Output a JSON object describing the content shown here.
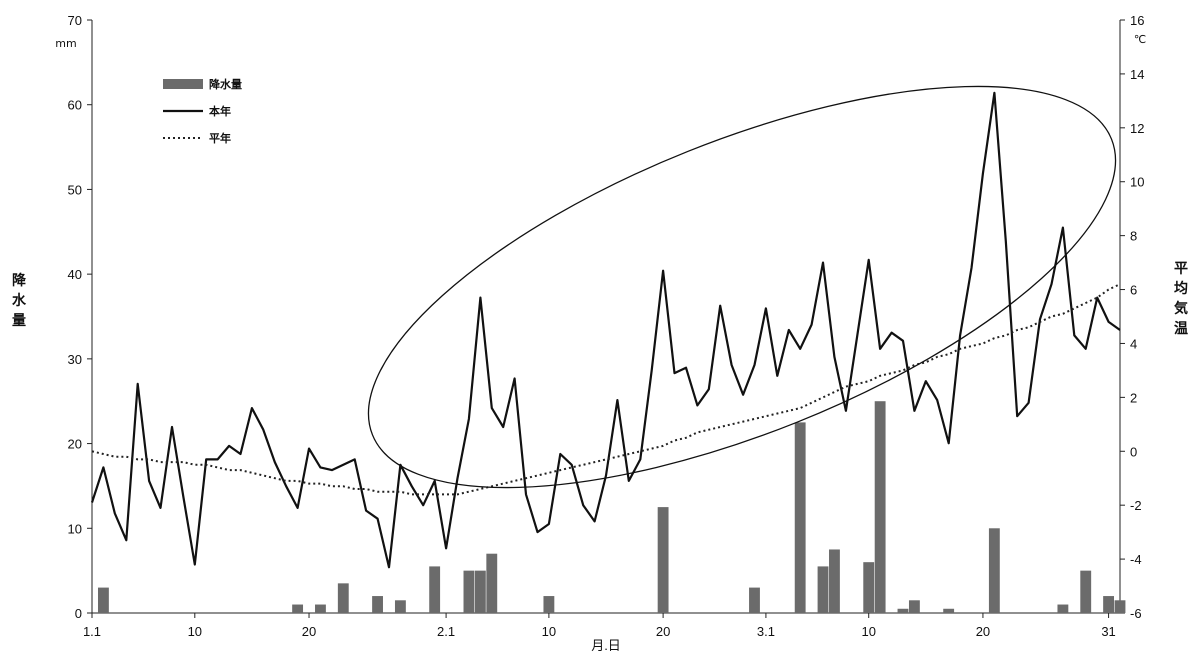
{
  "chart_data": {
    "type": "bar+line",
    "xlabel": "月.日",
    "y_left": {
      "label": "降水量",
      "unit": "mm",
      "range": [
        0,
        70
      ],
      "ticks": [
        0,
        10,
        20,
        30,
        40,
        50,
        60,
        70
      ]
    },
    "y_right": {
      "label": "平均気温",
      "unit": "℃",
      "range": [
        -6,
        16
      ],
      "ticks": [
        -6,
        -4,
        -2,
        0,
        2,
        4,
        6,
        8,
        10,
        12,
        14,
        16
      ]
    },
    "x_range": [
      1,
      91
    ],
    "x_ticks": [
      {
        "day": 1,
        "label": "1.1"
      },
      {
        "day": 10,
        "label": "10"
      },
      {
        "day": 20,
        "label": "20"
      },
      {
        "day": 32,
        "label": "2.1"
      },
      {
        "day": 41,
        "label": "10"
      },
      {
        "day": 51,
        "label": "20"
      },
      {
        "day": 60,
        "label": "3.1"
      },
      {
        "day": 69,
        "label": "10"
      },
      {
        "day": 79,
        "label": "20"
      },
      {
        "day": 90,
        "label": "31"
      }
    ],
    "legend": {
      "position": "top-left",
      "items": [
        {
          "key": "precip",
          "label": "降水量",
          "style": "bar"
        },
        {
          "key": "temp_this",
          "label": "本年",
          "style": "solid-line"
        },
        {
          "key": "temp_normal",
          "label": "平年",
          "style": "dotted-line"
        }
      ]
    },
    "colors": {
      "bar": "#6b6b6b",
      "line": "#111111",
      "normal": "#222222"
    },
    "annotation": {
      "type": "ellipse",
      "note": "highlighted period of warming trend"
    },
    "series": [
      {
        "name": "降水量",
        "axis": "left",
        "type": "bar",
        "points": [
          [
            2,
            3
          ],
          [
            19,
            1
          ],
          [
            21,
            1
          ],
          [
            23,
            3.5
          ],
          [
            26,
            2
          ],
          [
            28,
            1.5
          ],
          [
            31,
            5.5
          ],
          [
            34,
            5
          ],
          [
            35,
            5
          ],
          [
            36,
            7
          ],
          [
            41,
            2
          ],
          [
            51,
            12.5
          ],
          [
            59,
            3
          ],
          [
            63,
            22.5
          ],
          [
            65,
            5.5
          ],
          [
            66,
            7.5
          ],
          [
            69,
            6
          ],
          [
            70,
            25
          ],
          [
            72,
            0.5
          ],
          [
            73,
            1.5
          ],
          [
            76,
            0.5
          ],
          [
            80,
            10
          ],
          [
            86,
            1
          ],
          [
            88,
            5
          ],
          [
            90,
            2
          ],
          [
            91,
            1.5
          ]
        ]
      },
      {
        "name": "本年",
        "axis": "right",
        "type": "line",
        "y": [
          -1.9,
          -0.6,
          -2.3,
          -3.3,
          2.5,
          -1.1,
          -2.1,
          0.9,
          -1.7,
          -4.2,
          -0.3,
          -0.3,
          0.2,
          -0.1,
          1.6,
          0.8,
          -0.4,
          -1.3,
          -2.1,
          0.1,
          -0.6,
          -0.7,
          -0.5,
          -0.3,
          -2.2,
          -2.5,
          -4.3,
          -0.5,
          -1.3,
          -2.0,
          -1.1,
          -3.6,
          -1.0,
          1.2,
          5.7,
          1.6,
          0.9,
          2.7,
          -1.6,
          -3.0,
          -2.7,
          -0.1,
          -0.5,
          -2.0,
          -2.6,
          -0.9,
          1.9,
          -1.1,
          -0.3,
          3.0,
          6.7,
          2.9,
          3.1,
          1.7,
          2.3,
          5.4,
          3.2,
          2.1,
          3.2,
          5.3,
          2.8,
          4.5,
          3.8,
          4.7,
          7.0,
          3.5,
          1.5,
          4.3,
          7.1,
          3.8,
          4.4,
          4.1,
          1.5,
          2.6,
          1.9,
          0.3,
          4.3,
          6.8,
          10.3,
          13.3,
          7.8,
          1.3,
          1.8,
          4.9,
          6.2,
          8.3,
          4.3,
          3.8,
          5.7,
          4.8,
          4.5
        ]
      },
      {
        "name": "平年",
        "axis": "right",
        "type": "line",
        "y": [
          0.0,
          -0.1,
          -0.2,
          -0.2,
          -0.3,
          -0.3,
          -0.4,
          -0.4,
          -0.4,
          -0.5,
          -0.5,
          -0.6,
          -0.7,
          -0.7,
          -0.8,
          -0.9,
          -1.0,
          -1.1,
          -1.1,
          -1.2,
          -1.2,
          -1.3,
          -1.3,
          -1.4,
          -1.4,
          -1.5,
          -1.5,
          -1.5,
          -1.6,
          -1.6,
          -1.6,
          -1.6,
          -1.6,
          -1.5,
          -1.4,
          -1.3,
          -1.2,
          -1.1,
          -1.0,
          -0.9,
          -0.8,
          -0.7,
          -0.6,
          -0.5,
          -0.4,
          -0.3,
          -0.2,
          -0.1,
          0.0,
          0.1,
          0.2,
          0.4,
          0.5,
          0.7,
          0.8,
          0.9,
          1.0,
          1.1,
          1.2,
          1.3,
          1.4,
          1.5,
          1.6,
          1.8,
          2.0,
          2.2,
          2.4,
          2.5,
          2.6,
          2.8,
          2.9,
          3.0,
          3.2,
          3.3,
          3.5,
          3.6,
          3.8,
          3.9,
          4.0,
          4.2,
          4.3,
          4.5,
          4.6,
          4.8,
          5.0,
          5.1,
          5.3,
          5.5,
          5.7,
          6.0,
          6.2
        ]
      }
    ]
  }
}
